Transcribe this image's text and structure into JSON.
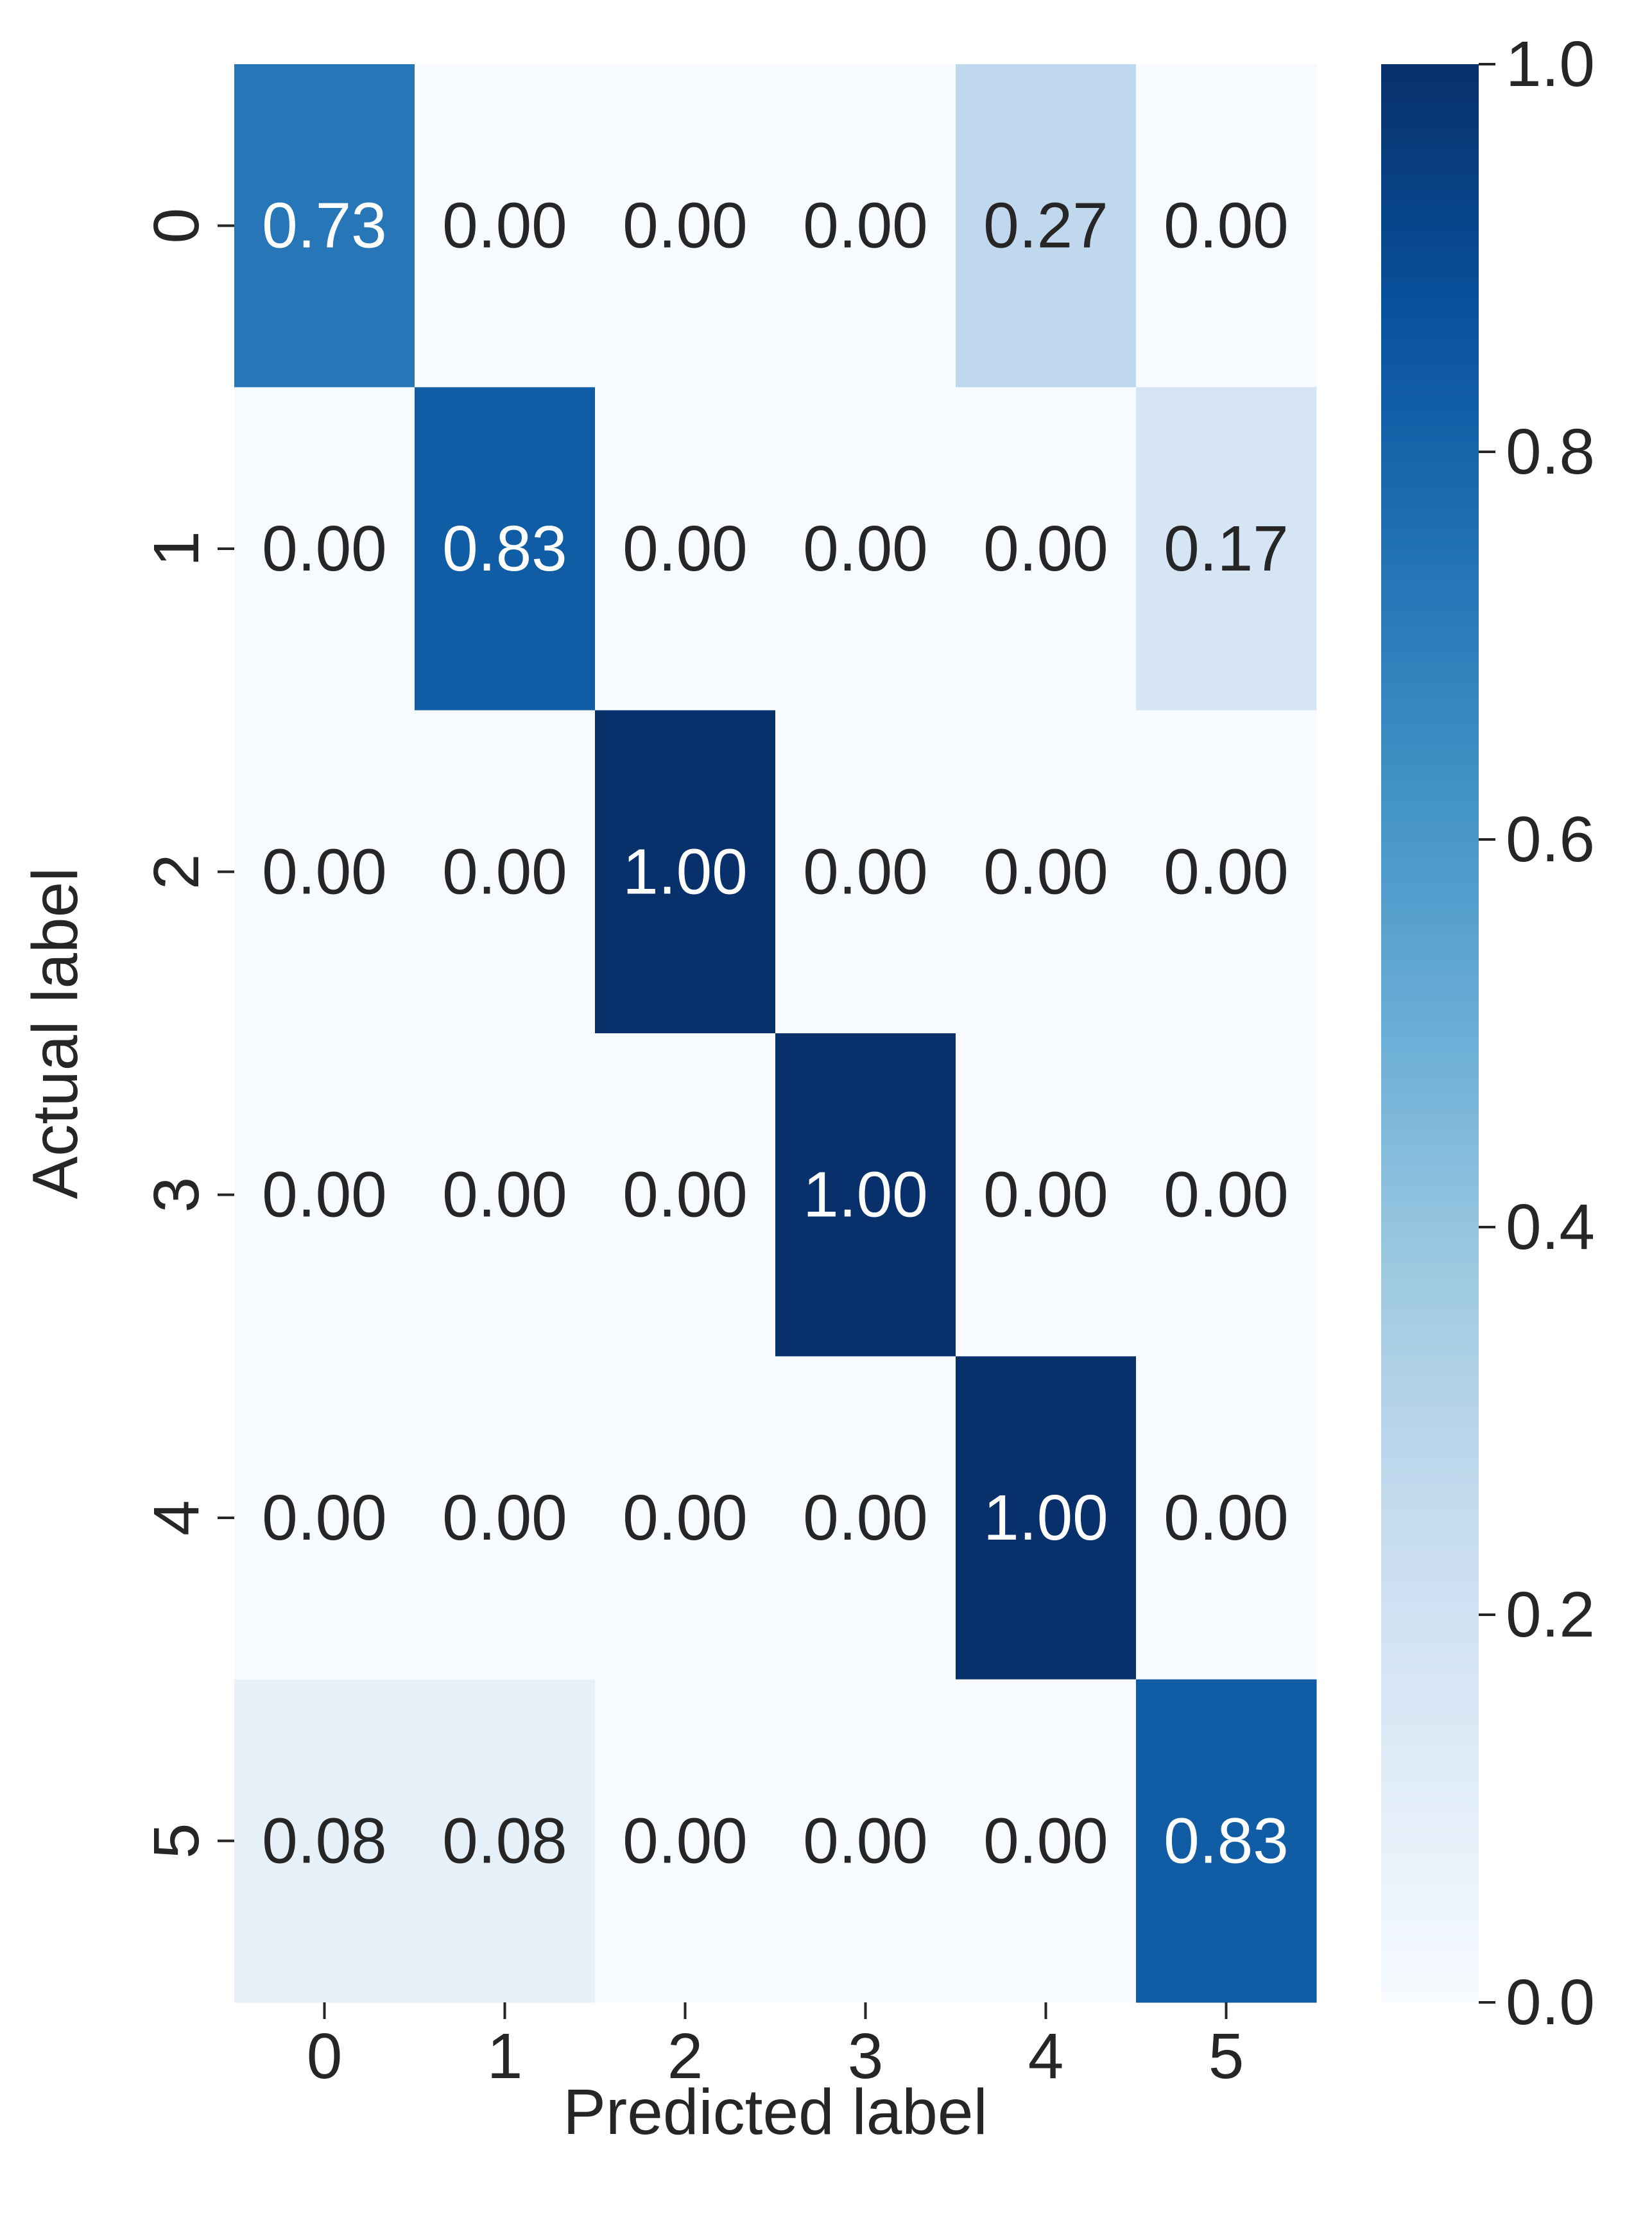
{
  "chart_data": {
    "type": "heatmap",
    "title": "",
    "xlabel": "Predicted label",
    "ylabel": "Actual label",
    "x_categories": [
      "0",
      "1",
      "2",
      "3",
      "4",
      "5"
    ],
    "y_categories": [
      "0",
      "1",
      "2",
      "3",
      "4",
      "5"
    ],
    "values": [
      [
        0.73,
        0.0,
        0.0,
        0.0,
        0.27,
        0.0
      ],
      [
        0.0,
        0.83,
        0.0,
        0.0,
        0.0,
        0.17
      ],
      [
        0.0,
        0.0,
        1.0,
        0.0,
        0.0,
        0.0
      ],
      [
        0.0,
        0.0,
        0.0,
        1.0,
        0.0,
        0.0
      ],
      [
        0.0,
        0.0,
        0.0,
        0.0,
        1.0,
        0.0
      ],
      [
        0.08,
        0.08,
        0.0,
        0.0,
        0.0,
        0.83
      ]
    ],
    "value_format": "0.00",
    "colormap": "Blues",
    "colorbar": {
      "range": [
        0.0,
        1.0
      ],
      "ticks": [
        0.0,
        0.2,
        0.4,
        0.6,
        0.8,
        1.0
      ],
      "tick_labels": [
        "0.0",
        "0.2",
        "0.4",
        "0.6",
        "0.8",
        "1.0"
      ]
    },
    "annotation_colors": {
      "dark_cell_text": "#ffffff",
      "light_cell_text": "#262626"
    }
  }
}
